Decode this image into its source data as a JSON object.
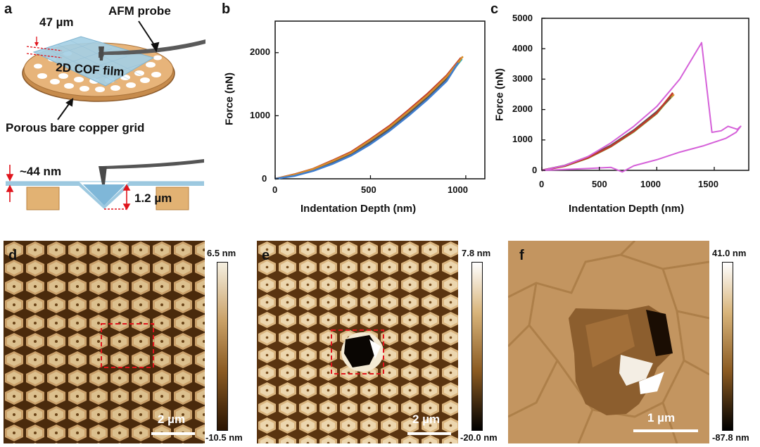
{
  "panel_a": {
    "letter": "a",
    "width_label": "47 µm",
    "probe_label": "AFM probe",
    "film_label": "2D COF film",
    "grid_label": "Porous bare copper grid",
    "thickness_label": "~44 nm",
    "depth_label": "1.2 µm",
    "colors": {
      "film": "#9dc9e0",
      "copper": "#d9a468",
      "copper_dark": "#b97e3e",
      "probe": "#555555",
      "arrow": "#e0141c"
    }
  },
  "panel_b": {
    "letter": "b",
    "xlabel": "Indentation Depth (nm)",
    "ylabel": "Force (nN)",
    "xticks": [
      "0",
      "500",
      "1000"
    ],
    "yticks": [
      "0",
      "1000",
      "2000"
    ]
  },
  "panel_c": {
    "letter": "c",
    "xlabel": "Indentation Depth (nm)",
    "ylabel": "Force (nN)",
    "xticks": [
      "0",
      "500",
      "1000",
      "1500"
    ],
    "yticks": [
      "0",
      "1000",
      "2000",
      "3000",
      "4000",
      "5000"
    ]
  },
  "panel_d": {
    "letter": "d",
    "cb_max": "6.5 nm",
    "cb_min": "-10.5 nm",
    "scale": "2 µm"
  },
  "panel_e": {
    "letter": "e",
    "cb_max": "7.8 nm",
    "cb_min": "-20.0 nm",
    "scale": "2 µm"
  },
  "panel_f": {
    "letter": "f",
    "cb_max": "41.0 nm",
    "cb_min": "-87.8 nm",
    "scale": "1 µm"
  },
  "chart_data": [
    {
      "type": "line",
      "panel": "b",
      "xlabel": "Indentation Depth (nm)",
      "ylabel": "Force (nN)",
      "xlim": [
        0,
        1100
      ],
      "ylim": [
        0,
        2500
      ],
      "series": [
        {
          "x": [
            0,
            100,
            200,
            300,
            400,
            500,
            600,
            700,
            800,
            900,
            980
          ],
          "y": [
            0,
            60,
            150,
            270,
            400,
            600,
            800,
            1050,
            1300,
            1600,
            1900
          ],
          "color": "#2ab5c9"
        },
        {
          "x": [
            0,
            100,
            200,
            300,
            400,
            500,
            600,
            700,
            800,
            900,
            970
          ],
          "y": [
            0,
            50,
            130,
            240,
            380,
            560,
            770,
            1010,
            1270,
            1560,
            1880
          ],
          "color": "#7bb342"
        },
        {
          "x": [
            0,
            100,
            200,
            300,
            400,
            500,
            600,
            700,
            800,
            900,
            975
          ],
          "y": [
            0,
            70,
            160,
            290,
            430,
            630,
            840,
            1090,
            1350,
            1640,
            1920
          ],
          "color": "#c0392b"
        },
        {
          "x": [
            0,
            100,
            200,
            300,
            400,
            500,
            600,
            700,
            800,
            900,
            965
          ],
          "y": [
            0,
            55,
            140,
            255,
            390,
            580,
            790,
            1030,
            1290,
            1580,
            1860
          ],
          "color": "#555555"
        },
        {
          "x": [
            0,
            100,
            200,
            300,
            400,
            500,
            600,
            700,
            800,
            900,
            985
          ],
          "y": [
            0,
            65,
            155,
            280,
            415,
            615,
            820,
            1070,
            1325,
            1620,
            1940
          ],
          "color": "#d68c2b"
        },
        {
          "x": [
            0,
            100,
            200,
            300,
            400,
            500,
            600,
            700,
            800,
            900,
            960
          ],
          "y": [
            0,
            45,
            125,
            235,
            370,
            550,
            760,
            1000,
            1260,
            1550,
            1840
          ],
          "color": "#3f7ecf"
        }
      ]
    },
    {
      "type": "line",
      "panel": "c",
      "xlabel": "Indentation Depth (nm)",
      "ylabel": "Force (nN)",
      "xlim": [
        0,
        1800
      ],
      "ylim": [
        0,
        5000
      ],
      "series": [
        {
          "x": [
            0,
            200,
            400,
            600,
            800,
            1000,
            1150
          ],
          "y": [
            0,
            150,
            420,
            800,
            1300,
            1900,
            2500
          ],
          "color": "#d68c2b"
        },
        {
          "x": [
            0,
            200,
            400,
            600,
            800,
            1000,
            1130
          ],
          "y": [
            0,
            140,
            400,
            780,
            1270,
            1870,
            2450
          ],
          "color": "#7bb342"
        },
        {
          "x": [
            0,
            200,
            400,
            600,
            800,
            1000,
            1120
          ],
          "y": [
            0,
            160,
            440,
            820,
            1320,
            1930,
            2400
          ],
          "color": "#555555"
        },
        {
          "x": [
            0,
            200,
            400,
            600,
            800,
            1000,
            1140
          ],
          "y": [
            0,
            145,
            410,
            790,
            1290,
            1890,
            2550
          ],
          "color": "#c0392b"
        },
        {
          "x": [
            0,
            200,
            400,
            600,
            800,
            1000,
            1200,
            1390,
            1480,
            1560,
            1620,
            1700,
            1730,
            1690,
            1600,
            1400,
            1200,
            1000,
            800,
            700,
            600,
            400,
            200,
            0
          ],
          "y": [
            0,
            160,
            450,
            900,
            1450,
            2100,
            3000,
            4200,
            1250,
            1300,
            1450,
            1350,
            1450,
            1250,
            1050,
            800,
            600,
            350,
            150,
            -50,
            100,
            60,
            30,
            0
          ],
          "color": "#d561d9"
        }
      ]
    }
  ]
}
